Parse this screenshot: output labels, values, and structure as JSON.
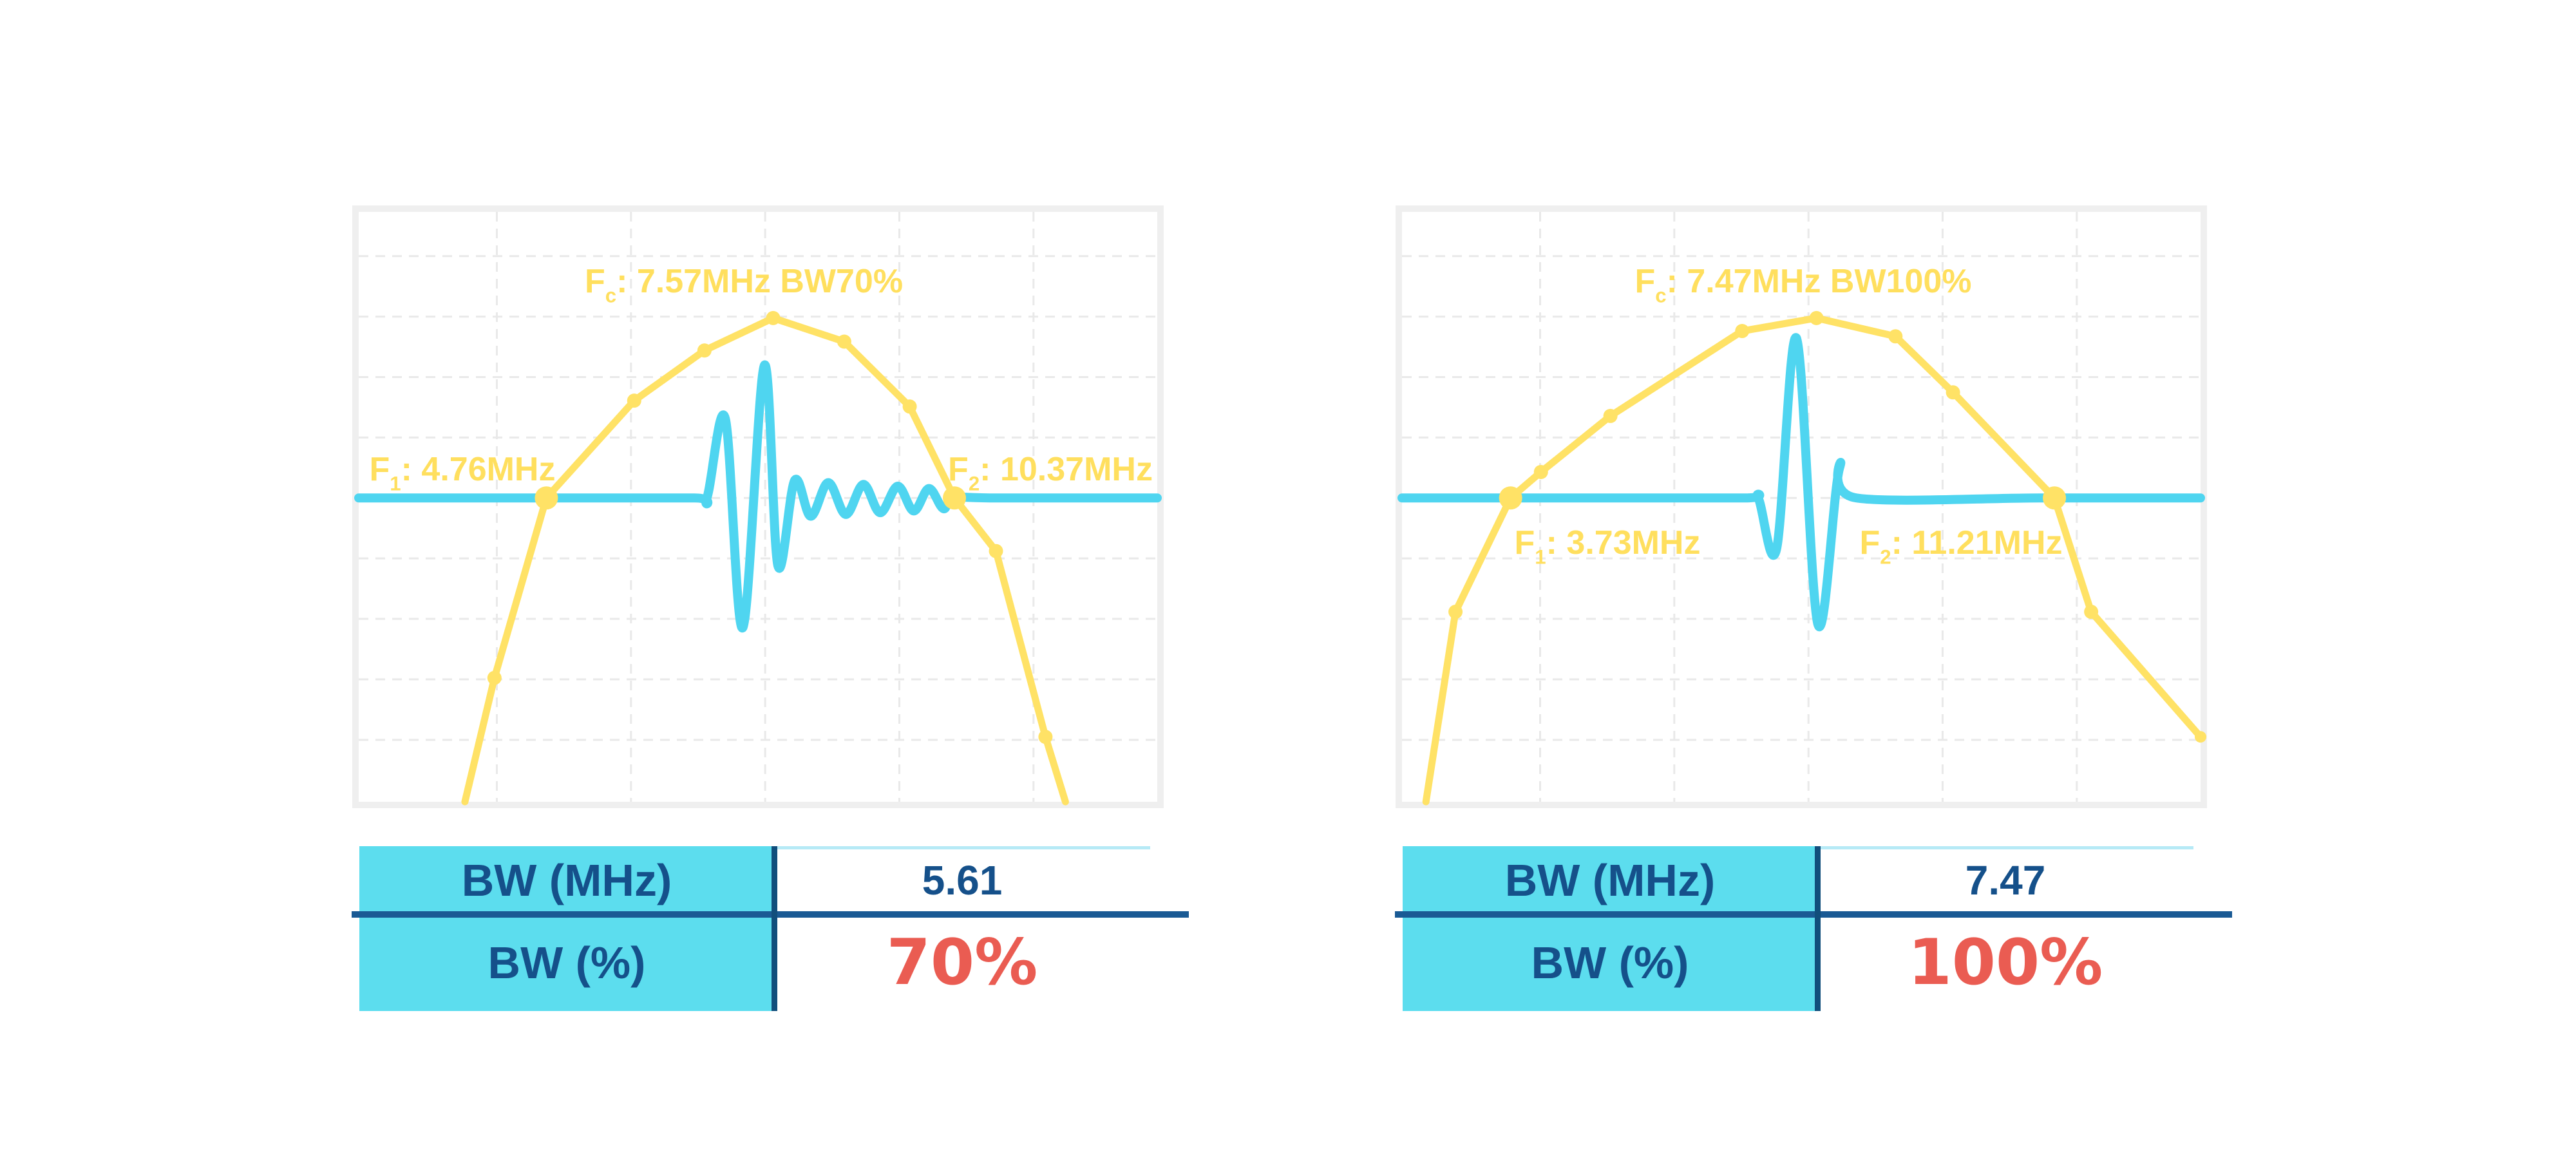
{
  "colors": {
    "spectrum_yellow": "#ffe266",
    "annotation_yellow": "#ffdf5e",
    "pulse_cyan": "#4fd5f0",
    "table_fill_cyan": "#5cddee",
    "navy_text": "#15508a",
    "divider_navy": "#1a5a94",
    "highlight_red": "#ea5c52",
    "grid_gray": "#e9e9e9",
    "frame_gray": "#efefef"
  },
  "chart_data": [
    {
      "type": "line",
      "title": "Pulse spectrum, 70% bandwidth",
      "axes_visible": false,
      "center_frequency_mhz": 7.57,
      "f1_mhz": 4.76,
      "f2_mhz": 10.37,
      "bandwidth_mhz": 5.61,
      "bandwidth_percent": 70,
      "annotations": {
        "fc": {
          "f": "F",
          "sub": "c",
          "rest": ": 7.57MHz BW70%"
        },
        "f1": {
          "f": "F",
          "sub": "1",
          "rest": ": 4.76MHz"
        },
        "f2": {
          "f": "F",
          "sub": "2",
          "rest": ": 10.37MHz"
        }
      },
      "grid": {
        "vlines": [
          0.173,
          0.341,
          0.509,
          0.677,
          0.845
        ],
        "hlines": [
          0.075,
          0.1775,
          0.28,
          0.3825,
          0.485,
          0.5875,
          0.69,
          0.7925,
          0.895
        ]
      },
      "series": [
        {
          "name": "pulse",
          "color": "#4fd5f0",
          "points": [
            [
              0,
              0.485
            ],
            [
              0.25,
              0.485
            ],
            [
              0.42,
              0.485
            ],
            [
              0.436,
              0.485
            ],
            [
              0.459,
              0.35
            ],
            [
              0.481,
              0.705
            ],
            [
              0.508,
              0.26
            ],
            [
              0.525,
              0.6
            ],
            [
              0.546,
              0.455
            ],
            [
              0.566,
              0.516
            ],
            [
              0.588,
              0.459
            ],
            [
              0.61,
              0.513
            ],
            [
              0.632,
              0.462
            ],
            [
              0.653,
              0.51
            ],
            [
              0.675,
              0.465
            ],
            [
              0.695,
              0.507
            ],
            [
              0.714,
              0.469
            ],
            [
              0.732,
              0.503
            ],
            [
              0.746,
              0.485
            ],
            [
              0.8,
              0.485
            ],
            [
              1,
              0.485
            ]
          ]
        },
        {
          "name": "spectrum",
          "color": "#ffe266",
          "points": [
            [
              0.133,
              1
            ],
            [
              0.17,
              0.79
            ],
            [
              0.235,
              0.485
            ],
            [
              0.345,
              0.32
            ],
            [
              0.433,
              0.235
            ],
            [
              0.519,
              0.18
            ],
            [
              0.608,
              0.22
            ],
            [
              0.69,
              0.33
            ],
            [
              0.746,
              0.485
            ],
            [
              0.798,
              0.575
            ],
            [
              0.86,
              0.89
            ],
            [
              0.885,
              1
            ]
          ],
          "markers": [
            {
              "x": 0.17,
              "y": 0.79,
              "size": "normal"
            },
            {
              "x": 0.235,
              "y": 0.485,
              "size": "large"
            },
            {
              "x": 0.345,
              "y": 0.32,
              "size": "normal"
            },
            {
              "x": 0.433,
              "y": 0.235,
              "size": "normal"
            },
            {
              "x": 0.519,
              "y": 0.18,
              "size": "normal"
            },
            {
              "x": 0.608,
              "y": 0.22,
              "size": "normal"
            },
            {
              "x": 0.69,
              "y": 0.33,
              "size": "normal"
            },
            {
              "x": 0.746,
              "y": 0.485,
              "size": "large"
            },
            {
              "x": 0.798,
              "y": 0.575,
              "size": "normal"
            },
            {
              "x": 0.86,
              "y": 0.89,
              "size": "normal"
            }
          ]
        }
      ]
    },
    {
      "type": "line",
      "title": "Pulse spectrum, 100% bandwidth",
      "axes_visible": false,
      "center_frequency_mhz": 7.47,
      "f1_mhz": 3.73,
      "f2_mhz": 11.21,
      "bandwidth_mhz": 7.47,
      "bandwidth_percent": 100,
      "annotations": {
        "fc": {
          "f": "F",
          "sub": "c",
          "rest": ": 7.47MHz BW100%"
        },
        "f1": {
          "f": "F",
          "sub": "1",
          "rest": ": 3.73MHz"
        },
        "f2": {
          "f": "F",
          "sub": "2",
          "rest": ": 11.21MHz"
        }
      },
      "grid": {
        "vlines": [
          0.173,
          0.341,
          0.509,
          0.677,
          0.845
        ],
        "hlines": [
          0.075,
          0.1775,
          0.28,
          0.3825,
          0.485,
          0.5875,
          0.69,
          0.7925,
          0.895
        ]
      },
      "series": [
        {
          "name": "pulse",
          "color": "#4fd5f0",
          "points": [
            [
              0,
              0.485
            ],
            [
              0.25,
              0.485
            ],
            [
              0.43,
              0.485
            ],
            [
              0.446,
              0.485
            ],
            [
              0.469,
              0.572
            ],
            [
              0.494,
              0.214
            ],
            [
              0.521,
              0.7
            ],
            [
              0.548,
              0.434
            ],
            [
              0.569,
              0.485
            ],
            [
              0.8,
              0.485
            ],
            [
              1,
              0.485
            ]
          ]
        },
        {
          "name": "spectrum",
          "color": "#ffe266",
          "points": [
            [
              0.03,
              1
            ],
            [
              0.067,
              0.678
            ],
            [
              0.136,
              0.485
            ],
            [
              0.174,
              0.441
            ],
            [
              0.261,
              0.346
            ],
            [
              0.426,
              0.202
            ],
            [
              0.519,
              0.18
            ],
            [
              0.618,
              0.211
            ],
            [
              0.69,
              0.306
            ],
            [
              0.817,
              0.485
            ],
            [
              0.863,
              0.678
            ],
            [
              1,
              0.89
            ]
          ],
          "markers": [
            {
              "x": 0.067,
              "y": 0.678,
              "size": "normal"
            },
            {
              "x": 0.136,
              "y": 0.485,
              "size": "large"
            },
            {
              "x": 0.174,
              "y": 0.441,
              "size": "normal"
            },
            {
              "x": 0.261,
              "y": 0.346,
              "size": "normal"
            },
            {
              "x": 0.426,
              "y": 0.202,
              "size": "normal"
            },
            {
              "x": 0.519,
              "y": 0.18,
              "size": "normal"
            },
            {
              "x": 0.618,
              "y": 0.211,
              "size": "normal"
            },
            {
              "x": 0.69,
              "y": 0.306,
              "size": "normal"
            },
            {
              "x": 0.817,
              "y": 0.485,
              "size": "large"
            },
            {
              "x": 0.863,
              "y": 0.678,
              "size": "normal"
            },
            {
              "x": 1,
              "y": 0.89,
              "size": "small"
            }
          ]
        }
      ]
    }
  ],
  "tables": [
    {
      "rows": [
        {
          "label": "BW (MHz)",
          "value": "5.61"
        },
        {
          "label": "BW (%)",
          "value": "70%"
        }
      ]
    },
    {
      "rows": [
        {
          "label": "BW (MHz)",
          "value": "7.47"
        },
        {
          "label": "BW (%)",
          "value": "100%"
        }
      ]
    }
  ]
}
